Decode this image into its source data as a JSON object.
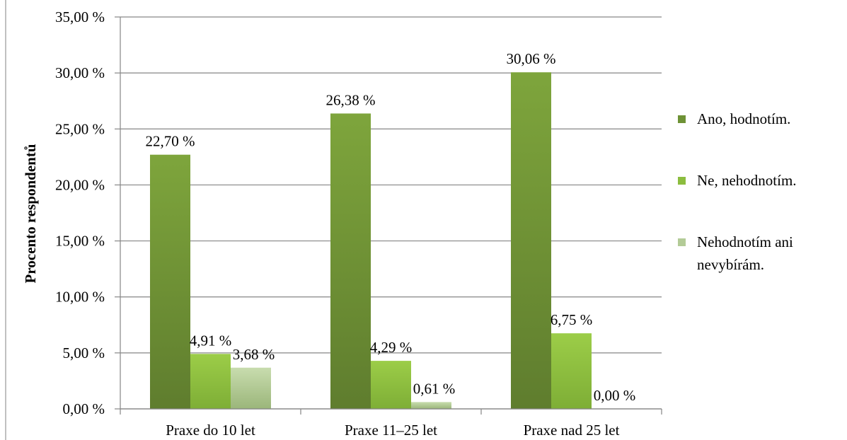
{
  "chart_data": {
    "type": "bar",
    "title": "",
    "xlabel": "",
    "ylabel": "Procento respondentů",
    "ylim": [
      0,
      35
    ],
    "yticks": [
      "0,00 %",
      "5,00 %",
      "10,00 %",
      "15,00 %",
      "20,00 %",
      "25,00 %",
      "30,00 %",
      "35,00 %"
    ],
    "ytick_values": [
      0,
      5,
      10,
      15,
      20,
      25,
      30,
      35
    ],
    "grid": true,
    "legend_position": "right",
    "categories": [
      "Praxe do 10 let",
      "Praxe 11–25 let",
      "Praxe nad 25 let"
    ],
    "series": [
      {
        "name": "Ano, hodnotím.",
        "values": [
          22.7,
          26.38,
          30.06
        ],
        "labels": [
          "22,70 %",
          "26,38 %",
          "30,06 %"
        ],
        "color": "#6e9236"
      },
      {
        "name": "Ne, nehodnotím.",
        "values": [
          4.91,
          4.29,
          6.75
        ],
        "labels": [
          "4,91 %",
          "4,29 %",
          "6,75 %"
        ],
        "color": "#8cbd3f"
      },
      {
        "name": "Nehodnotím ani nevybírám.",
        "legend_lines": [
          "Nehodnotím ani",
          "nevybírám."
        ],
        "values": [
          3.68,
          0.61,
          0.0
        ],
        "labels": [
          "3,68 %",
          "0,61 %",
          "0,00 %"
        ],
        "color": "#b3cb97"
      }
    ]
  }
}
